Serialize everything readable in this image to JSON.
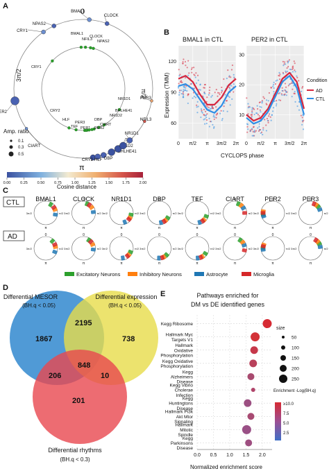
{
  "panels": {
    "a": {
      "label": "A",
      "angle_labels": [
        "0",
        "π/2",
        "π",
        "3π/2"
      ],
      "outer_genes": [
        "BMAL1",
        "CLOCK",
        "CRY1",
        "NPAS2",
        "PER2",
        "PER3",
        "NFIL3",
        "CIART",
        "CRY2",
        "HLF",
        "DBP",
        "BHLHE41",
        "NR1D2",
        "TEF",
        "NR1D1"
      ],
      "inner_genes": [
        "NFIL3",
        "BMAL1",
        "CLOCK",
        "NPAS2",
        "CRY1",
        "NR1D1",
        "BHLHE41",
        "NR1D2",
        "CRY2",
        "DBP",
        "HLF",
        "TEF",
        "PER3",
        "PER1",
        "PER2",
        "CIART"
      ],
      "amp_legend": {
        "title": "Amp. ratio",
        "values": [
          "0.1",
          "0.3",
          "0.5"
        ]
      },
      "colorbar": {
        "ticks": [
          "0.00",
          "0.25",
          "0.50",
          "0.75",
          "1.00",
          "1.25",
          "1.50",
          "1.75",
          "2.00"
        ],
        "label": "Cosine distance",
        "colors": [
          "#3b52a0",
          "#5a8fd4",
          "#a8cde8",
          "#f3e9c8",
          "#f1b377",
          "#d6624d",
          "#a7213a"
        ]
      }
    },
    "b": {
      "label": "B",
      "ylabel": "Expression (TMM)",
      "xlabel": "CYCLOPS phase",
      "legend": {
        "title": "Condition",
        "items": [
          {
            "name": "AD",
            "color": "#d7263d"
          },
          {
            "name": "CTL",
            "color": "#2f8ee5"
          }
        ]
      },
      "xticks": [
        "0",
        "π/2",
        "π",
        "3π/2",
        "2π"
      ]
    },
    "c": {
      "label": "C",
      "genes": [
        "BMAL1",
        "CLOCK",
        "NR1D1",
        "DBP",
        "TEF",
        "CIART",
        "PER2",
        "PER3"
      ],
      "rows": [
        "CTL",
        "AD"
      ],
      "angle_labels": {
        "top": "0",
        "bottom": "π",
        "left": "3π/2",
        "right": "π/2"
      },
      "legend": [
        {
          "name": "Excitatory Neurons",
          "color": "#2ca02c"
        },
        {
          "name": "Inhibitory Neurons",
          "color": "#ff7f0e"
        },
        {
          "name": "Astrocyte",
          "color": "#1f77b4"
        },
        {
          "name": "Microglia",
          "color": "#d62728"
        }
      ]
    },
    "d": {
      "label": "D",
      "sets": [
        {
          "name": "Differential MESOR",
          "sub": "(BH.q < 0.05)",
          "color": "#3d8fd1"
        },
        {
          "name": "Differential expression",
          "sub": "(BH.q < 0.05)",
          "color": "#e7dc4a"
        },
        {
          "name": "Differential rhythms",
          "sub": "(BH.q < 0.3)",
          "color": "#e8474f"
        }
      ],
      "counts": {
        "mesor_only": "1867",
        "mesor_expr": "2195",
        "expr_only": "738",
        "all_three": "848",
        "mesor_rhythm": "206",
        "expr_rhythm": "10",
        "rhythm_only": "201"
      }
    },
    "e": {
      "label": "E",
      "title_line1": "Pathways enriched for",
      "title_line2": "DM vs DE identified genes",
      "xlabel": "Normalized enrichment score",
      "xticks": [
        "0.0",
        "0.5",
        "1.0",
        "1.5",
        "2.0"
      ]
    }
  },
  "chart_data": [
    {
      "type": "line",
      "title": "BMAL1 in CTL",
      "ylabel": "Expression (TMM)",
      "xlabel": "CYCLOPS phase",
      "xlim": [
        0,
        6.283
      ],
      "ylim": [
        45,
        135
      ],
      "yticks": [
        60,
        90,
        120
      ],
      "series": [
        {
          "name": "AD",
          "x": [
            0,
            0.785,
            1.571,
            2.356,
            3.142,
            3.927,
            4.712,
            5.498,
            6.283
          ],
          "values": [
            103,
            106,
            100,
            88,
            78,
            78,
            85,
            97,
            103
          ]
        },
        {
          "name": "CTL",
          "x": [
            0,
            0.785,
            1.571,
            2.356,
            3.142,
            3.927,
            4.712,
            5.498,
            6.283
          ],
          "values": [
            96,
            98,
            93,
            83,
            73,
            70,
            77,
            90,
            96
          ]
        }
      ]
    },
    {
      "type": "line",
      "title": "PER2 in CTL",
      "xlabel": "CYCLOPS phase",
      "xlim": [
        0,
        6.283
      ],
      "ylim": [
        2,
        33
      ],
      "yticks": [
        10,
        20,
        30
      ],
      "series": [
        {
          "name": "AD",
          "x": [
            0,
            0.785,
            1.571,
            2.356,
            3.142,
            3.927,
            4.712,
            5.498,
            6.283
          ],
          "values": [
            10,
            8,
            9,
            12,
            17,
            22,
            24,
            21,
            12
          ]
        },
        {
          "name": "CTL",
          "x": [
            0,
            0.785,
            1.571,
            2.356,
            3.142,
            3.927,
            4.712,
            5.498,
            6.283
          ],
          "values": [
            9,
            7,
            8,
            11,
            16,
            21,
            23,
            19,
            10
          ]
        }
      ]
    },
    {
      "type": "scatter",
      "title": "",
      "xlabel": "Normalized enrichment score",
      "xlim": [
        0,
        2.3
      ],
      "categories": [
        "Kegg Ribosome",
        "Hallmark Myc Targets V1",
        "Hallmark Oxidative Phosphorylation",
        "Kegg Oxidative Phosphorylation",
        "Kegg Alzheimers Disease",
        "Kegg Vibrio Cholerae Infection",
        "Kegg Huntingtons Disease",
        "Hallmark Pi3k Akt Mtor Signaling",
        "Hallmark Mitotic Spindle",
        "Kegg Parkinsons Disease"
      ],
      "values": [
        2.15,
        1.78,
        1.75,
        1.72,
        1.65,
        1.72,
        1.55,
        1.65,
        1.52,
        1.58
      ],
      "size_legend": {
        "title": "size",
        "values": [
          50,
          100,
          150,
          200,
          250
        ]
      },
      "color_legend": {
        "title": "Enrichment -Log(BH.q)",
        "ticks": [
          "≥10.0",
          "7.5",
          "5.0",
          "2.5"
        ]
      }
    }
  ]
}
